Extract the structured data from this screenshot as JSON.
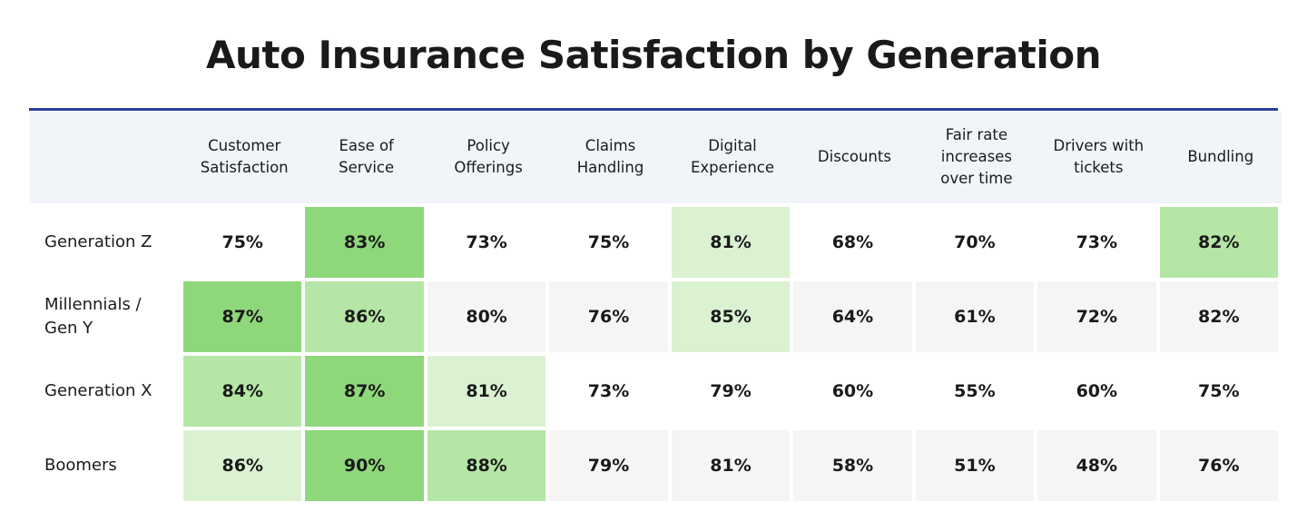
{
  "header": {
    "title": "Auto Insurance Satisfaction by Generation"
  },
  "table": {
    "columns": [
      "Customer Satisfaction",
      "Ease of Service",
      "Policy Offerings",
      "Claims Handling",
      "Digital Experience",
      "Discounts",
      "Fair rate increases over time",
      "Drivers with tickets",
      "Bundling"
    ],
    "rows": [
      {
        "label": "Generation Z",
        "cells": [
          "75%",
          "83%",
          "73%",
          "75%",
          "81%",
          "68%",
          "70%",
          "73%",
          "82%"
        ],
        "colors": [
          "#ffffff",
          "#8fd77b",
          "#ffffff",
          "#ffffff",
          "#daf2d2",
          "#ffffff",
          "#ffffff",
          "#ffffff",
          "#b5e6a5"
        ]
      },
      {
        "label": "Millennials / Gen Y",
        "cells": [
          "87%",
          "86%",
          "80%",
          "76%",
          "85%",
          "64%",
          "61%",
          "72%",
          "82%"
        ],
        "colors": [
          "#8fd77b",
          "#b5e6a5",
          "#f5f5f5",
          "#f5f5f5",
          "#daf2d2",
          "#f5f5f5",
          "#f5f5f5",
          "#f5f5f5",
          "#f5f5f5"
        ]
      },
      {
        "label": "Generation X",
        "cells": [
          "84%",
          "87%",
          "81%",
          "73%",
          "79%",
          "60%",
          "55%",
          "60%",
          "75%"
        ],
        "colors": [
          "#b5e6a5",
          "#8fd77b",
          "#daf2d2",
          "#ffffff",
          "#ffffff",
          "#ffffff",
          "#ffffff",
          "#ffffff",
          "#ffffff"
        ]
      },
      {
        "label": "Boomers",
        "cells": [
          "86%",
          "90%",
          "88%",
          "79%",
          "81%",
          "58%",
          "51%",
          "48%",
          "76%"
        ],
        "colors": [
          "#daf2d2",
          "#8fd77b",
          "#b5e6a5",
          "#f5f5f5",
          "#f5f5f5",
          "#f5f5f5",
          "#f5f5f5",
          "#f5f5f5",
          "#f5f5f5"
        ]
      }
    ]
  }
}
